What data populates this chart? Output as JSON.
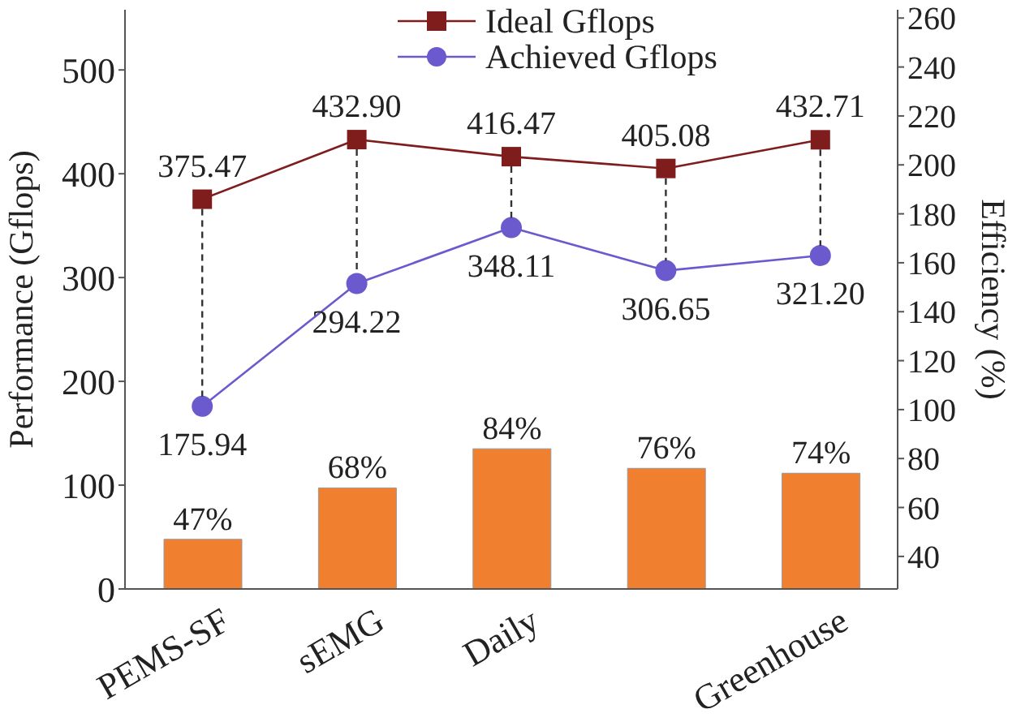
{
  "chart_data": {
    "type": "line",
    "categories": [
      "PEMS-SF",
      "sEMG",
      "Daily",
      null,
      "Greenhouse"
    ],
    "ylabel": "Performance (Gflops)",
    "y2label": "Efficiency (%)",
    "ylim": [
      0,
      558
    ],
    "yticks": [
      0,
      100,
      200,
      300,
      400,
      500
    ],
    "y2lim": [
      26.7,
      263.4
    ],
    "y2ticks": [
      40,
      60,
      80,
      100,
      120,
      140,
      160,
      180,
      200,
      220,
      240,
      260
    ],
    "legend": "top",
    "line_style": "solid",
    "series": [
      {
        "name": "Ideal Gflops",
        "marker": "square",
        "color": "#7f1d1d",
        "values": [
          375.47,
          432.9,
          416.47,
          405.08,
          432.71
        ],
        "value_labels": [
          "375.47",
          "432.90",
          "416.47",
          "405.08",
          "432.71"
        ]
      },
      {
        "name": "Achieved Gflops",
        "marker": "circle",
        "color": "#6a5acd",
        "values": [
          175.94,
          294.22,
          348.11,
          306.65,
          321.2
        ],
        "value_labels": [
          "175.94",
          "294.22",
          "348.11",
          "306.65",
          "321.20"
        ]
      },
      {
        "type": "bar",
        "axis": "y2",
        "color": "#f08030",
        "values": [
          47,
          68,
          84,
          76,
          74
        ],
        "value_labels": [
          "47%",
          "68%",
          "84%",
          "76%",
          "74%"
        ]
      }
    ]
  }
}
